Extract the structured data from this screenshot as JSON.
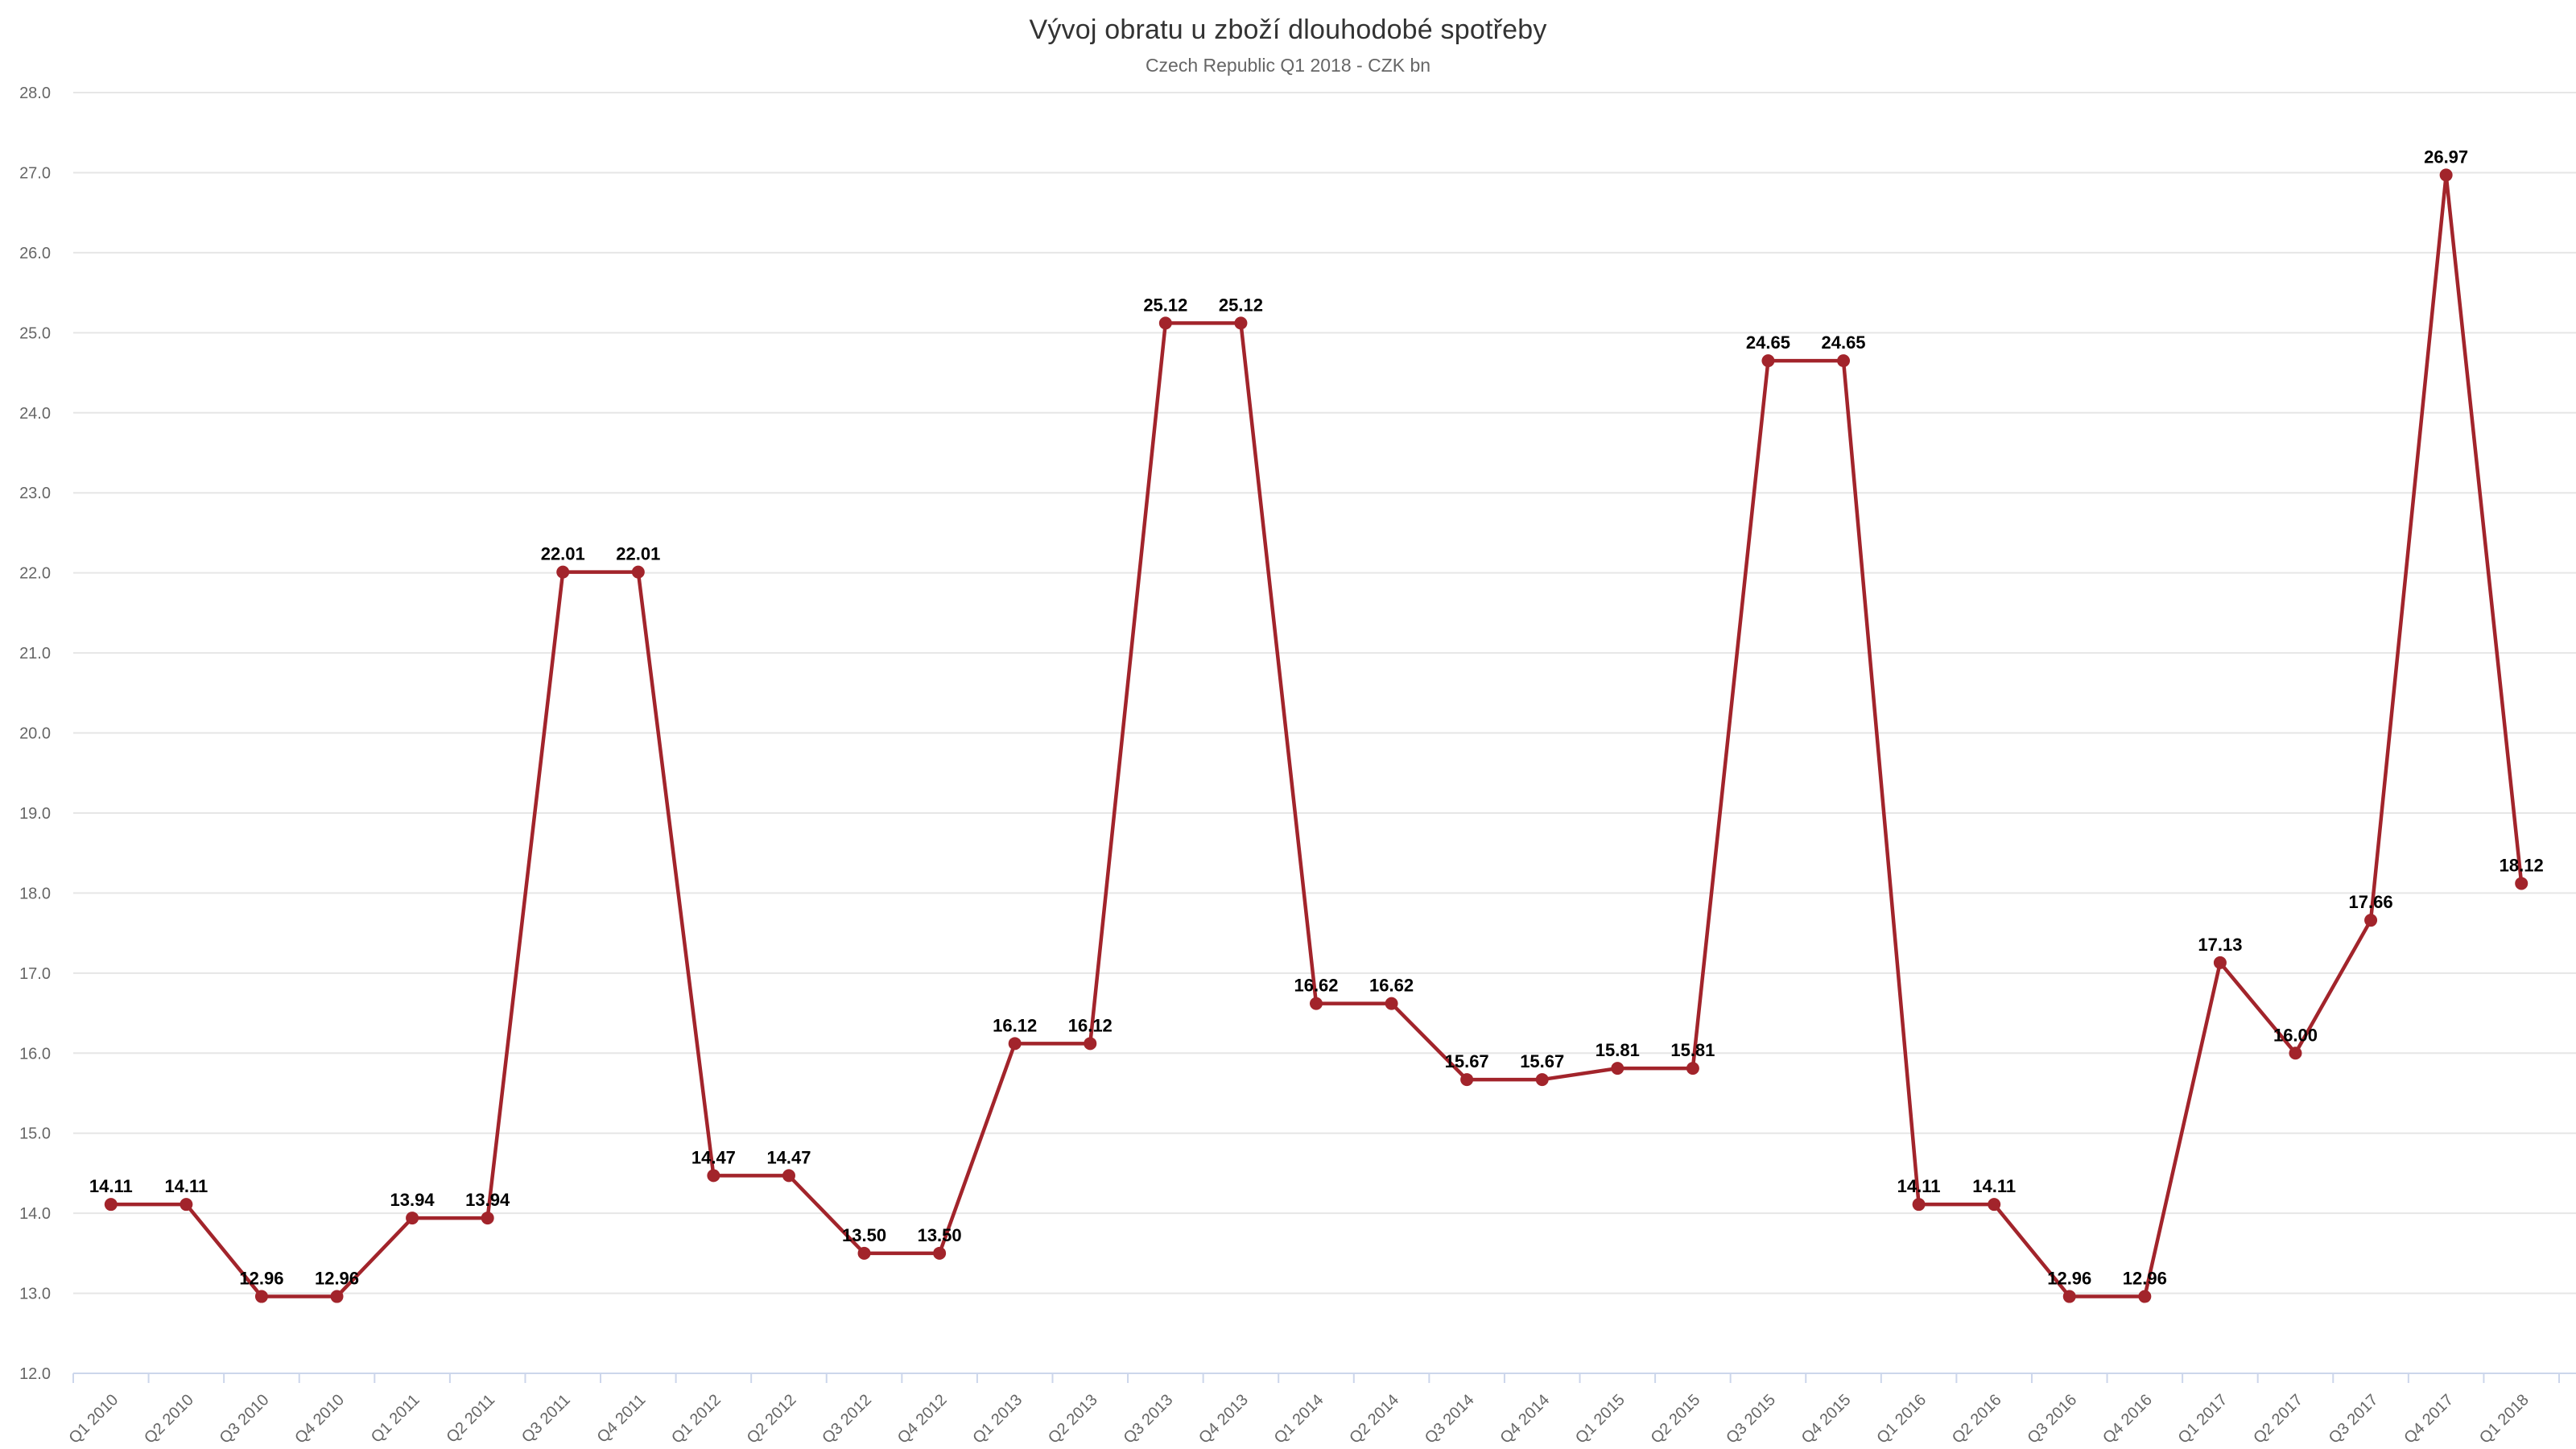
{
  "chart_data": {
    "type": "line",
    "title": "Vývoj obratu u zboží dlouhodobé spotřeby",
    "subtitle": "Czech Republic Q1 2018 - CZK bn",
    "categories": [
      "Q1 2010",
      "Q2 2010",
      "Q3 2010",
      "Q4 2010",
      "Q1 2011",
      "Q2 2011",
      "Q3 2011",
      "Q4 2011",
      "Q1 2012",
      "Q2 2012",
      "Q3 2012",
      "Q4 2012",
      "Q1 2013",
      "Q2 2013",
      "Q3 2013",
      "Q4 2013",
      "Q1 2014",
      "Q2 2014",
      "Q3 2014",
      "Q4 2014",
      "Q1 2015",
      "Q2 2015",
      "Q3 2015",
      "Q4 2015",
      "Q1 2016",
      "Q2 2016",
      "Q3 2016",
      "Q4 2016",
      "Q1 2017",
      "Q2 2017",
      "Q3 2017",
      "Q4 2017",
      "Q1 2018"
    ],
    "values": [
      14.11,
      14.11,
      12.96,
      12.96,
      13.94,
      13.94,
      22.01,
      22.01,
      14.47,
      14.47,
      13.5,
      13.5,
      16.12,
      16.12,
      25.12,
      25.12,
      16.62,
      16.62,
      15.67,
      15.67,
      15.81,
      15.81,
      24.65,
      24.65,
      14.11,
      14.11,
      12.96,
      12.96,
      17.13,
      16.0,
      17.66,
      26.97,
      18.12
    ],
    "xlabel": "",
    "ylabel": "",
    "ylim": [
      12.0,
      28.0
    ],
    "ytick_step": 1.0,
    "grid": true,
    "legend": "none",
    "data_labels": true,
    "x_labels_rotation_deg": -45,
    "colors": {
      "line": "#A2242B",
      "marker": "#A2242B",
      "grid": "#E6E6E6",
      "axis_line": "#CCD6EB",
      "axis_text": "#666666",
      "data_label": "#000000",
      "title": "#333333",
      "subtitle": "#666666",
      "background": "#FFFFFF"
    }
  }
}
